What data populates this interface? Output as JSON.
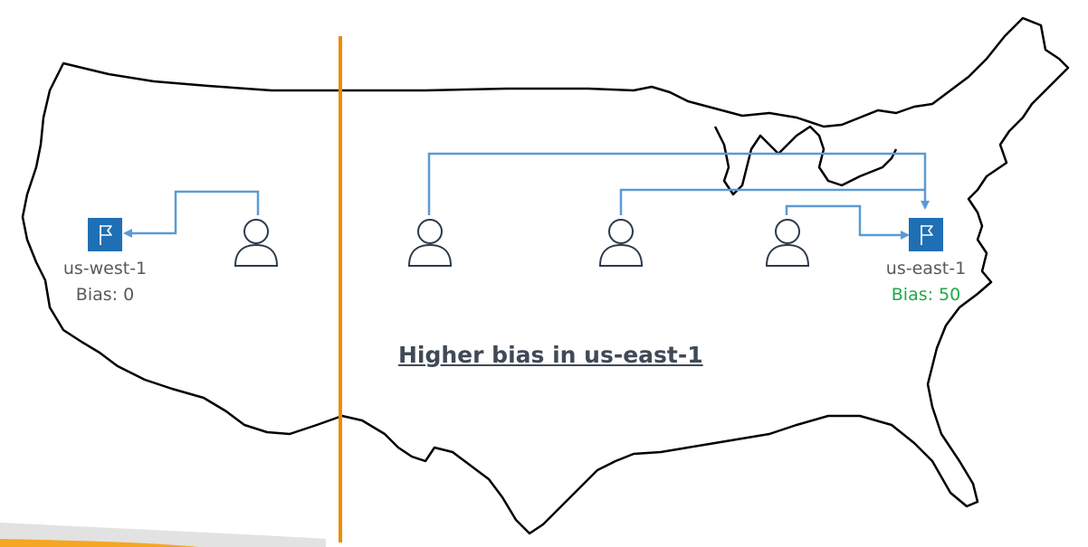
{
  "headline": "Higher bias in us-east-1",
  "colors": {
    "map_outline": "#000000",
    "divider": "#ED8B00",
    "route": "#5A9BD5",
    "endpoint_fill": "#1F6FB5",
    "user_stroke": "#2E3A4B",
    "label_gray": "#595959",
    "highlight_green": "#1DA84A",
    "headline": "#3F4A56"
  },
  "regions": [
    {
      "name": "us-west-1",
      "bias_label": "Bias: 0",
      "bias_value": 0,
      "icon": "flag-icon"
    },
    {
      "name": "us-east-1",
      "bias_label": "Bias: 50",
      "bias_value": 50,
      "icon": "flag-icon"
    }
  ],
  "users": [
    {
      "icon": "user-icon",
      "routes_to": "us-west-1"
    },
    {
      "icon": "user-icon",
      "routes_to": "us-east-1"
    },
    {
      "icon": "user-icon",
      "routes_to": "us-east-1"
    },
    {
      "icon": "user-icon",
      "routes_to": "us-east-1"
    }
  ]
}
